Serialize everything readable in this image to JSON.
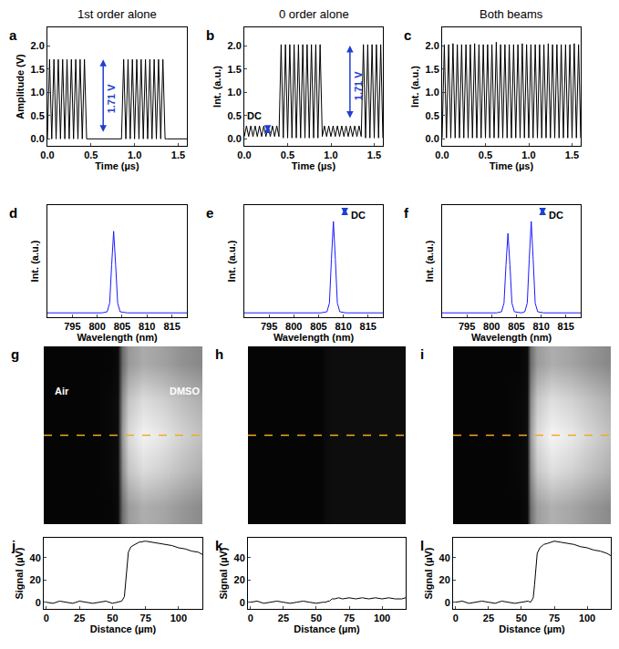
{
  "chart_data": [
    {
      "type": "line",
      "label": "a",
      "title": "1st order alone",
      "x_label": "Time (µs)",
      "y_label": "Amplitude (V)",
      "color": "#000000",
      "x": [
        0,
        0.025,
        0.05,
        0.075,
        0.1,
        0.125,
        0.15,
        0.175,
        0.2,
        0.225,
        0.25,
        0.275,
        0.3,
        0.325,
        0.35,
        0.375,
        0.4,
        0.425,
        0.45,
        0.475,
        0.5,
        0.525,
        0.55,
        0.575,
        0.6,
        0.625,
        0.65,
        0.675,
        0.7,
        0.725,
        0.75,
        0.775,
        0.8,
        0.825,
        0.85,
        0.875,
        0.9,
        0.925,
        0.95,
        0.975,
        1,
        1.025,
        1.05,
        1.075,
        1.1,
        1.125,
        1.15,
        1.175,
        1.2,
        1.225,
        1.25,
        1.275,
        1.3,
        1.325,
        1.35,
        1.375,
        1.4,
        1.425,
        1.45,
        1.475,
        1.5,
        1.525,
        1.55,
        1.575,
        1.6
      ],
      "values": [
        0,
        1.71,
        0,
        1.71,
        0,
        1.71,
        0,
        1.71,
        0,
        1.71,
        0,
        1.71,
        0,
        1.71,
        0,
        1.71,
        0,
        1.71,
        0,
        0,
        0,
        0,
        0,
        0,
        0,
        0,
        0,
        0,
        0,
        0,
        0,
        0,
        0,
        0,
        0,
        1.71,
        0,
        1.71,
        0,
        1.71,
        0,
        1.71,
        0,
        1.71,
        0,
        1.71,
        0,
        1.71,
        0,
        1.71,
        0,
        1.71,
        0,
        1.71,
        0,
        0,
        0,
        0,
        0,
        0,
        0,
        0,
        0,
        0,
        0
      ],
      "xlim": [
        0,
        1.6
      ],
      "ylim": [
        -0.15,
        2.4
      ],
      "xticks": [
        {
          "value": 0,
          "label": "0.0"
        },
        {
          "value": 0.5,
          "label": "0.5"
        },
        {
          "value": 1,
          "label": "1.0"
        },
        {
          "value": 1.5,
          "label": "1.5"
        }
      ],
      "yticks": [
        {
          "value": 0,
          "label": "0.0"
        },
        {
          "value": 0.5,
          "label": "0.5"
        },
        {
          "value": 1,
          "label": "1.0"
        },
        {
          "value": 1.5,
          "label": "1.5"
        },
        {
          "value": 2,
          "label": "2.0"
        }
      ],
      "annotations": [
        {
          "text": "1.71 V",
          "x": 0.73,
          "y": 0.86,
          "arrow_x": 0.64,
          "from": 0,
          "to": 1.71
        }
      ]
    },
    {
      "type": "line",
      "label": "b",
      "title": "0 order alone",
      "x_label": "Time (µs)",
      "y_label": "Int. (a.u.)",
      "color": "#000000",
      "x": [
        0,
        0.025,
        0.05,
        0.075,
        0.1,
        0.125,
        0.15,
        0.175,
        0.2,
        0.225,
        0.25,
        0.275,
        0.3,
        0.325,
        0.35,
        0.375,
        0.4,
        0.425,
        0.45,
        0.475,
        0.5,
        0.525,
        0.55,
        0.575,
        0.6,
        0.625,
        0.65,
        0.675,
        0.7,
        0.725,
        0.75,
        0.775,
        0.8,
        0.825,
        0.85,
        0.875,
        0.9,
        0.925,
        0.95,
        0.975,
        1,
        1.025,
        1.05,
        1.075,
        1.1,
        1.125,
        1.15,
        1.175,
        1.2,
        1.225,
        1.25,
        1.275,
        1.3,
        1.325,
        1.35,
        1.375,
        1.4,
        1.425,
        1.45,
        1.475,
        1.5,
        1.525,
        1.55,
        1.575,
        1.6
      ],
      "values": [
        0.05,
        0.28,
        0.05,
        0.28,
        0.05,
        0.28,
        0.05,
        0.28,
        0.05,
        0.28,
        0.05,
        0.28,
        0.05,
        0.28,
        0.05,
        0.28,
        0.05,
        2.03,
        0.02,
        2.03,
        0.02,
        2.03,
        0.02,
        2.03,
        0.02,
        2.03,
        0.02,
        2.03,
        0.02,
        2.03,
        0.02,
        2.03,
        0.02,
        2.03,
        0.02,
        2.03,
        0.05,
        0.28,
        0.05,
        0.28,
        0.05,
        0.28,
        0.05,
        0.28,
        0.05,
        0.28,
        0.05,
        0.28,
        0.05,
        0.28,
        0.05,
        0.28,
        0.05,
        0.28,
        0.05,
        2.03,
        0.02,
        2.03,
        0.02,
        2.03,
        0.02,
        2.03,
        0.02,
        2.03,
        0.02
      ],
      "xlim": [
        0,
        1.6
      ],
      "ylim": [
        -0.15,
        2.4
      ],
      "xticks": [
        {
          "value": 0,
          "label": "0.0"
        },
        {
          "value": 0.5,
          "label": "0.5"
        },
        {
          "value": 1,
          "label": "1.0"
        },
        {
          "value": 1.5,
          "label": "1.5"
        }
      ],
      "yticks": [
        {
          "value": 0,
          "label": "0.0"
        },
        {
          "value": 0.5,
          "label": "0.5"
        },
        {
          "value": 1,
          "label": "1.0"
        },
        {
          "value": 1.5,
          "label": "1.5"
        },
        {
          "value": 2,
          "label": "2.0"
        }
      ],
      "annotations": [
        {
          "text": "DC",
          "x": 0.12,
          "y": 0.5,
          "arrow_x": 0.27,
          "from": 0,
          "to": 0.27
        },
        {
          "text": "1.71 V",
          "x": 1.31,
          "y": 1.15,
          "arrow_x": 1.22,
          "from": 0.3,
          "to": 2.01
        }
      ]
    },
    {
      "type": "line",
      "label": "c",
      "title": "Both beams",
      "x_label": "Time (µs)",
      "y_label": "Int. (a.u.)",
      "color": "#000000",
      "x": [
        0,
        0.025,
        0.05,
        0.075,
        0.1,
        0.125,
        0.15,
        0.175,
        0.2,
        0.225,
        0.25,
        0.275,
        0.3,
        0.325,
        0.35,
        0.375,
        0.4,
        0.425,
        0.45,
        0.475,
        0.5,
        0.525,
        0.55,
        0.575,
        0.6,
        0.625,
        0.65,
        0.675,
        0.7,
        0.725,
        0.75,
        0.775,
        0.8,
        0.825,
        0.85,
        0.875,
        0.9,
        0.925,
        0.95,
        0.975,
        1,
        1.025,
        1.05,
        1.075,
        1.1,
        1.125,
        1.15,
        1.175,
        1.2,
        1.225,
        1.25,
        1.275,
        1.3,
        1.325,
        1.35,
        1.375,
        1.4,
        1.425,
        1.45,
        1.475,
        1.5,
        1.525,
        1.55,
        1.575,
        1.6
      ],
      "values": [
        0.02,
        2.03,
        0.02,
        2.03,
        0.02,
        2.05,
        0.02,
        2.03,
        0.02,
        2.03,
        0.02,
        2.03,
        0.02,
        2.03,
        0.02,
        2.05,
        0.02,
        2.03,
        0.02,
        2.03,
        0.02,
        2.03,
        0.02,
        2.03,
        0.02,
        2.08,
        0.02,
        2.03,
        0.02,
        2.03,
        0.02,
        2.03,
        0.02,
        2.03,
        0.02,
        2.03,
        0.02,
        2.05,
        0.02,
        2.03,
        0.02,
        2.03,
        0.02,
        2.03,
        0.02,
        2.03,
        0.02,
        2.03,
        0.02,
        2.05,
        0.02,
        2.03,
        0.02,
        2.03,
        0.02,
        2.03,
        0.02,
        2.03,
        0.02,
        2.03,
        0.02,
        2.05,
        0.02,
        2.03,
        0.02
      ],
      "xlim": [
        0,
        1.6
      ],
      "ylim": [
        -0.15,
        2.4
      ],
      "xticks": [
        {
          "value": 0,
          "label": "0.0"
        },
        {
          "value": 0.5,
          "label": "0.5"
        },
        {
          "value": 1,
          "label": "1.0"
        },
        {
          "value": 1.5,
          "label": "1.5"
        }
      ],
      "yticks": [
        {
          "value": 0,
          "label": "0.0"
        },
        {
          "value": 0.5,
          "label": "0.5"
        },
        {
          "value": 1,
          "label": "1.0"
        },
        {
          "value": 1.5,
          "label": "1.5"
        },
        {
          "value": 2,
          "label": "2.0"
        }
      ]
    },
    {
      "type": "line",
      "label": "d",
      "x_label": "Wavelength (nm)",
      "y_label": "Int. (a.u.)",
      "color": "#1a1aff",
      "tick_labels": "x",
      "x": [
        790,
        801,
        802,
        802.5,
        802.9,
        803.3,
        803.7,
        804.1,
        804.6,
        806,
        818
      ],
      "values": [
        0.01,
        0.01,
        0.02,
        0.1,
        0.45,
        0.76,
        0.45,
        0.1,
        0.02,
        0.01,
        0.01
      ],
      "xlim": [
        790,
        818
      ],
      "ylim": [
        -0.03,
        1
      ],
      "xticks": [
        795,
        800,
        805,
        810,
        815
      ]
    },
    {
      "type": "line",
      "label": "e",
      "x_label": "Wavelength (nm)",
      "y_label": "Int. (a.u.)",
      "color": "#1a1aff",
      "tick_labels": "x",
      "x": [
        790,
        805.5,
        806.7,
        807.2,
        807.6,
        808,
        808.4,
        808.8,
        809.3,
        810.5,
        818
      ],
      "values": [
        0.01,
        0.01,
        0.02,
        0.1,
        0.5,
        0.85,
        0.5,
        0.1,
        0.02,
        0.01,
        0.01
      ],
      "xlim": [
        790,
        818
      ],
      "ylim": [
        -0.03,
        1
      ],
      "xticks": [
        795,
        800,
        805,
        810,
        815
      ],
      "annotations": [
        {
          "text": "DC",
          "x": 813,
          "y": 0.91,
          "arrow_x": 810.3,
          "from": 0.85,
          "to": 0.97
        }
      ]
    },
    {
      "type": "line",
      "label": "f",
      "x_label": "Wavelength (nm)",
      "y_label": "Int. (a.u.)",
      "color": "#1a1aff",
      "tick_labels": "x",
      "x": [
        790,
        801,
        802,
        802.5,
        802.9,
        803.3,
        803.7,
        804.1,
        804.6,
        806,
        806.7,
        807.2,
        807.6,
        808,
        808.4,
        808.8,
        809.3,
        810.5,
        818
      ],
      "values": [
        0.01,
        0.01,
        0.02,
        0.1,
        0.45,
        0.74,
        0.45,
        0.1,
        0.02,
        0.01,
        0.02,
        0.1,
        0.5,
        0.85,
        0.5,
        0.1,
        0.02,
        0.01,
        0.01
      ],
      "xlim": [
        790,
        818
      ],
      "ylim": [
        -0.03,
        1
      ],
      "xticks": [
        795,
        800,
        805,
        810,
        815
      ],
      "annotations": [
        {
          "text": "DC",
          "x": 813,
          "y": 0.91,
          "arrow_x": 810.3,
          "from": 0.85,
          "to": 0.97
        }
      ]
    },
    {
      "type": "heatmap",
      "label": "g",
      "tick_labels": false,
      "texts": [
        "Air",
        "DMSO"
      ],
      "x": [
        0,
        10,
        20,
        30,
        40,
        50,
        56,
        59,
        64,
        75,
        90,
        105,
        120
      ],
      "xlim": [
        0,
        120
      ],
      "zlim": [
        0,
        1
      ],
      "z": [
        [
          0.02,
          0.02,
          0.02,
          0.02,
          0.02,
          0.02,
          0.04,
          0.43,
          0.61,
          0.68,
          0.65,
          0.59,
          0.54
        ],
        [
          0.02,
          0.02,
          0.02,
          0.02,
          0.02,
          0.03,
          0.05,
          0.54,
          0.77,
          0.86,
          0.81,
          0.74,
          0.68
        ],
        [
          0.02,
          0.02,
          0.02,
          0.02,
          0.02,
          0.03,
          0.05,
          0.6,
          0.85,
          0.95,
          0.9,
          0.82,
          0.75
        ],
        [
          0.02,
          0.02,
          0.02,
          0.02,
          0.02,
          0.03,
          0.05,
          0.54,
          0.77,
          0.86,
          0.81,
          0.74,
          0.68
        ],
        [
          0.02,
          0.02,
          0.02,
          0.02,
          0.02,
          0.02,
          0.04,
          0.42,
          0.6,
          0.67,
          0.63,
          0.57,
          0.53
        ]
      ]
    },
    {
      "type": "heatmap",
      "label": "h",
      "tick_labels": false,
      "x": [
        0,
        10,
        20,
        30,
        40,
        50,
        56,
        59,
        64,
        75,
        90,
        105,
        120
      ],
      "xlim": [
        0,
        120
      ],
      "zlim": [
        0,
        1
      ],
      "z": [
        [
          0.02,
          0.02,
          0.02,
          0.02,
          0.02,
          0.02,
          0.02,
          0.04,
          0.05,
          0.05,
          0.05,
          0.05,
          0.05
        ],
        [
          0.02,
          0.02,
          0.02,
          0.02,
          0.02,
          0.02,
          0.02,
          0.04,
          0.05,
          0.05,
          0.05,
          0.05,
          0.05
        ],
        [
          0.02,
          0.02,
          0.02,
          0.02,
          0.02,
          0.02,
          0.02,
          0.04,
          0.05,
          0.05,
          0.05,
          0.05,
          0.05
        ],
        [
          0.02,
          0.02,
          0.02,
          0.02,
          0.02,
          0.02,
          0.02,
          0.04,
          0.05,
          0.05,
          0.05,
          0.05,
          0.05
        ],
        [
          0.02,
          0.02,
          0.02,
          0.02,
          0.02,
          0.02,
          0.02,
          0.04,
          0.05,
          0.05,
          0.05,
          0.05,
          0.05
        ]
      ]
    },
    {
      "type": "heatmap",
      "label": "i",
      "tick_labels": false,
      "x": [
        0,
        10,
        20,
        30,
        40,
        50,
        56,
        59,
        64,
        75,
        90,
        105,
        120
      ],
      "xlim": [
        0,
        120
      ],
      "zlim": [
        0,
        1
      ],
      "z": [
        [
          0.02,
          0.02,
          0.02,
          0.02,
          0.02,
          0.02,
          0.04,
          0.44,
          0.62,
          0.69,
          0.65,
          0.59,
          0.54
        ],
        [
          0.02,
          0.02,
          0.02,
          0.02,
          0.02,
          0.03,
          0.05,
          0.55,
          0.78,
          0.87,
          0.82,
          0.75,
          0.68
        ],
        [
          0.02,
          0.02,
          0.02,
          0.02,
          0.02,
          0.03,
          0.05,
          0.61,
          0.86,
          0.96,
          0.91,
          0.83,
          0.75
        ],
        [
          0.02,
          0.02,
          0.02,
          0.02,
          0.02,
          0.03,
          0.05,
          0.55,
          0.78,
          0.87,
          0.82,
          0.75,
          0.68
        ],
        [
          0.02,
          0.02,
          0.02,
          0.02,
          0.02,
          0.02,
          0.04,
          0.43,
          0.61,
          0.68,
          0.64,
          0.58,
          0.53
        ]
      ]
    },
    {
      "type": "line",
      "label": "j",
      "x_label": "Distance (µm)",
      "y_label": "Signal (µV)",
      "color": "#000000",
      "x": [
        0,
        5,
        10,
        15,
        20,
        25,
        30,
        35,
        40,
        45,
        50,
        55,
        57,
        59,
        60,
        61,
        62,
        64,
        67,
        70,
        75,
        80,
        85,
        90,
        95,
        100,
        105,
        110,
        115,
        118
      ],
      "values": [
        0,
        -1,
        1,
        0,
        -1,
        1,
        0,
        -1,
        0,
        1,
        -1,
        0,
        1,
        5,
        18,
        35,
        45,
        50,
        52,
        54,
        55,
        54,
        53,
        52,
        51,
        49,
        48,
        46,
        45,
        43
      ],
      "xlim": [
        -2,
        118
      ],
      "ylim": [
        -6,
        58
      ],
      "xticks": [
        0,
        25,
        50,
        75,
        100
      ],
      "yticks": [
        0,
        20,
        40
      ]
    },
    {
      "type": "line",
      "label": "k",
      "x_label": "Distance (µm)",
      "y_label": "Signal (µV)",
      "color": "#000000",
      "x": [
        0,
        5,
        10,
        15,
        20,
        25,
        30,
        35,
        40,
        45,
        50,
        55,
        57,
        59,
        60,
        61,
        62,
        64,
        67,
        70,
        75,
        80,
        85,
        90,
        95,
        100,
        105,
        110,
        115,
        118
      ],
      "values": [
        0,
        1,
        -1,
        0,
        1,
        0,
        -1,
        0,
        1,
        0,
        -1,
        0,
        0,
        1,
        1,
        2,
        3,
        3,
        4,
        3,
        4,
        3,
        4,
        3,
        4,
        3,
        4,
        3,
        3,
        4
      ],
      "xlim": [
        -2,
        118
      ],
      "ylim": [
        -6,
        58
      ],
      "xticks": [
        0,
        25,
        50,
        75,
        100
      ],
      "yticks": [
        0,
        20,
        40
      ]
    },
    {
      "type": "line",
      "label": "l",
      "x_label": "Distance (µm)",
      "y_label": "Signal (µV)",
      "color": "#000000",
      "x": [
        0,
        5,
        10,
        15,
        20,
        25,
        30,
        35,
        40,
        45,
        50,
        55,
        57,
        59,
        60,
        61,
        62,
        64,
        67,
        70,
        75,
        80,
        85,
        90,
        95,
        100,
        105,
        110,
        115,
        118
      ],
      "values": [
        0,
        1,
        -1,
        0,
        1,
        0,
        -1,
        1,
        0,
        -1,
        0,
        1,
        0,
        4,
        16,
        33,
        44,
        49,
        52,
        53,
        55,
        54,
        53,
        52,
        50,
        49,
        47,
        46,
        44,
        42
      ],
      "xlim": [
        -2,
        118
      ],
      "ylim": [
        -6,
        58
      ],
      "xticks": [
        0,
        25,
        50,
        75,
        100
      ],
      "yticks": [
        0,
        20,
        40
      ]
    }
  ]
}
